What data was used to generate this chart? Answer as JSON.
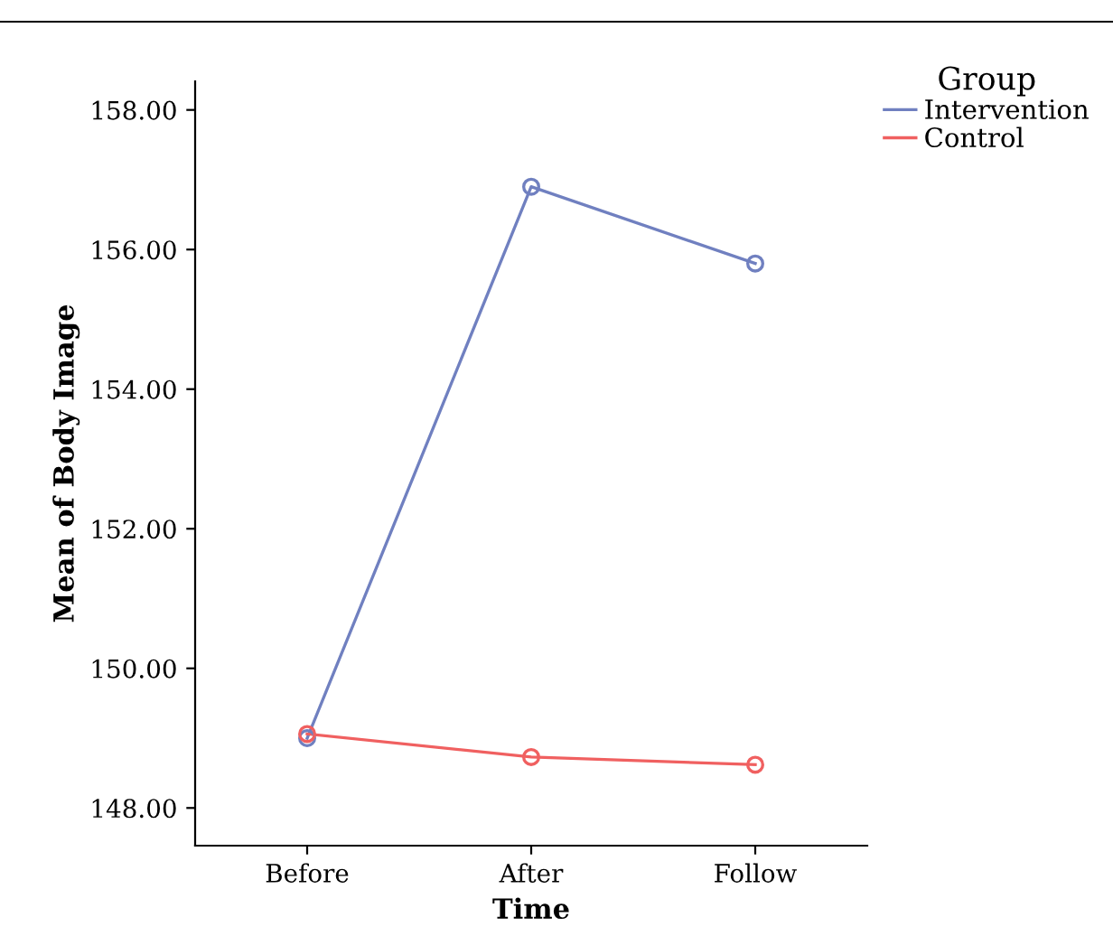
{
  "chart_data": {
    "type": "line",
    "xlabel": "Time",
    "ylabel": "Mean of Body Image",
    "legend_title": "Group",
    "legend": "top right",
    "marker": "circle",
    "grid": false,
    "categories": [
      "Before",
      "After",
      "Follow"
    ],
    "series": [
      {
        "name": "Intervention",
        "color": "#7080c0",
        "values": [
          149.0,
          156.9,
          155.8
        ]
      },
      {
        "name": "Control",
        "color": "#f06060",
        "values": [
          149.06,
          148.73,
          148.62
        ]
      }
    ],
    "ylim": [
      147.46,
      158.41
    ],
    "yticks": [
      {
        "value": 148,
        "label": "148.00"
      },
      {
        "value": 150,
        "label": "150.00"
      },
      {
        "value": 152,
        "label": "152.00"
      },
      {
        "value": 154,
        "label": "154.00"
      },
      {
        "value": 156,
        "label": "156.00"
      },
      {
        "value": 158,
        "label": "158.00"
      }
    ]
  }
}
